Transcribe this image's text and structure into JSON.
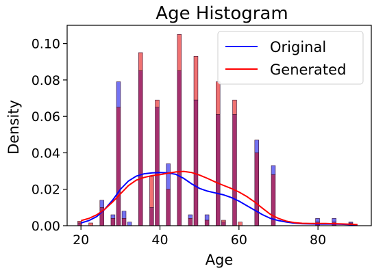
{
  "chart_data": {
    "type": "bar",
    "title": "Age Histogram",
    "xlabel": "Age",
    "ylabel": "Density",
    "xlim": [
      16.5,
      93.5
    ],
    "ylim": [
      0,
      0.11
    ],
    "xticks": [
      20,
      40,
      60,
      80
    ],
    "yticks": [
      0.0,
      0.02,
      0.04,
      0.06,
      0.08,
      0.1
    ],
    "xtick_labels": [
      "20",
      "40",
      "60",
      "80"
    ],
    "ytick_labels": [
      "0.00",
      "0.02",
      "0.04",
      "0.06",
      "0.08",
      "0.10"
    ],
    "grid": false,
    "legend_position": "top-right",
    "legend": [
      {
        "name": "Original",
        "color": "#0000ff"
      },
      {
        "name": "Generated",
        "color": "#ff0000"
      }
    ],
    "colors": {
      "original_fill": "#7373f2",
      "generated_fill": "#f07272",
      "overlap_fill": "#a6316e",
      "bar_edge": "#3a1030",
      "original_line": "#0000ff",
      "generated_line": "#ff0000"
    },
    "bin_edges": [
      19.0,
      20.4,
      21.8,
      23.2,
      24.6,
      26.0,
      27.4,
      28.8,
      30.2,
      31.6,
      33.0,
      34.4,
      35.8,
      37.2,
      38.6,
      40.0,
      41.4,
      42.8,
      44.2,
      45.6,
      47.0,
      48.4,
      49.8,
      51.2,
      52.6,
      54.0,
      55.4,
      56.8,
      58.2,
      59.6,
      61.0,
      62.4,
      63.8,
      65.2,
      66.6,
      68.0,
      69.4,
      70.8,
      72.2,
      73.6,
      75.0,
      76.4,
      77.8,
      79.2,
      80.6,
      82.0,
      83.4,
      84.8,
      86.2,
      87.6,
      89.0,
      90.4
    ],
    "series": [
      {
        "name": "Original",
        "histogram": [
          0.0015,
          0,
          0,
          0,
          0.014,
          0,
          0.006,
          0.079,
          0.008,
          0.002,
          0,
          0.085,
          0,
          0.01,
          0.065,
          0,
          0.034,
          0,
          0.085,
          0,
          0.006,
          0.069,
          0,
          0.006,
          0,
          0.061,
          0.002,
          0,
          0.061,
          0,
          0,
          0,
          0.047,
          0,
          0,
          0.033,
          0,
          0,
          0,
          0,
          0,
          0,
          0,
          0.004,
          0,
          0,
          0.004,
          0,
          0,
          0.002
        ],
        "kde": {
          "x": [
            20,
            22,
            24,
            26,
            28,
            30,
            32,
            34,
            36,
            38,
            40,
            42,
            44,
            46,
            48,
            50,
            52,
            54,
            56,
            58,
            60,
            62,
            64,
            66,
            68,
            70,
            72,
            74,
            76,
            78,
            80,
            82,
            84,
            86,
            88,
            90
          ],
          "y": [
            0.0015,
            0.0028,
            0.005,
            0.009,
            0.014,
            0.02,
            0.0245,
            0.0272,
            0.0285,
            0.029,
            0.0292,
            0.029,
            0.0282,
            0.026,
            0.023,
            0.0205,
            0.019,
            0.018,
            0.017,
            0.0155,
            0.0135,
            0.011,
            0.0085,
            0.006,
            0.004,
            0.0028,
            0.002,
            0.0014,
            0.0011,
            0.001,
            0.0009,
            0.0009,
            0.0009,
            0.0008,
            0.0006,
            0.0004
          ]
        }
      },
      {
        "name": "Generated",
        "histogram": [
          0.0025,
          0,
          0.0015,
          0,
          0.01,
          0,
          0.004,
          0.065,
          0.004,
          0,
          0,
          0.095,
          0,
          0.027,
          0.069,
          0,
          0.02,
          0,
          0.105,
          0,
          0.004,
          0.093,
          0,
          0.003,
          0,
          0.079,
          0.003,
          0,
          0.069,
          0.002,
          0,
          0,
          0.04,
          0,
          0,
          0.028,
          0,
          0,
          0,
          0,
          0,
          0,
          0,
          0.002,
          0,
          0,
          0.002,
          0,
          0,
          0.0015
        ],
        "kde": {
          "x": [
            20,
            22,
            24,
            26,
            28,
            30,
            32,
            34,
            36,
            38,
            40,
            42,
            44,
            46,
            48,
            50,
            52,
            54,
            56,
            58,
            60,
            62,
            64,
            66,
            68,
            70,
            72,
            74,
            76,
            78,
            80,
            82,
            84,
            86,
            88,
            90
          ],
          "y": [
            0.0028,
            0.004,
            0.006,
            0.009,
            0.013,
            0.0175,
            0.022,
            0.025,
            0.0265,
            0.0275,
            0.028,
            0.0288,
            0.0295,
            0.0298,
            0.0292,
            0.0278,
            0.026,
            0.024,
            0.0222,
            0.0205,
            0.0185,
            0.016,
            0.013,
            0.0095,
            0.0062,
            0.004,
            0.0025,
            0.0017,
            0.0013,
            0.0012,
            0.0012,
            0.0012,
            0.0011,
            0.001,
            0.0008,
            0.0006
          ]
        }
      }
    ]
  }
}
